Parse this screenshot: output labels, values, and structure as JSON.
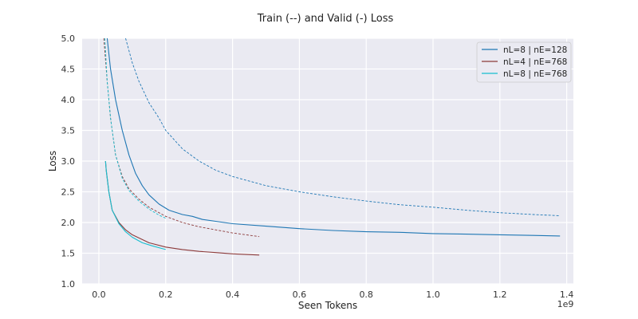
{
  "chart_data": {
    "type": "line",
    "title": "Train (--) and Valid (-) Loss",
    "xlabel": "Seen Tokens",
    "ylabel": "Loss",
    "x_offset_label": "1e9",
    "xlim": [
      -0.05,
      1.42
    ],
    "ylim": [
      1.0,
      5.0
    ],
    "x_ticks": [
      0.0,
      0.2,
      0.4,
      0.6,
      0.8,
      1.0,
      1.2,
      1.4
    ],
    "x_tick_labels": [
      "0.0",
      "0.2",
      "0.4",
      "0.6",
      "0.8",
      "1.0",
      "1.2",
      "1.4"
    ],
    "y_ticks": [
      1.0,
      1.5,
      2.0,
      2.5,
      3.0,
      3.5,
      4.0,
      4.5,
      5.0
    ],
    "y_tick_labels": [
      "1.0",
      "1.5",
      "2.0",
      "2.5",
      "3.0",
      "3.5",
      "4.0",
      "4.5",
      "5.0"
    ],
    "grid": true,
    "legend_position": "top-right",
    "legend": [
      {
        "label": "nL=8 | nE=128",
        "color": "#1f77b4"
      },
      {
        "label": "nL=4 | nE=768",
        "color": "#8c3a3a"
      },
      {
        "label": "nL=8 | nE=768",
        "color": "#17becf"
      }
    ],
    "series": [
      {
        "name": "nL=8 | nE=128",
        "split": "valid",
        "style": "solid",
        "color": "#1f77b4",
        "x": [
          0.025,
          0.035,
          0.05,
          0.07,
          0.09,
          0.11,
          0.13,
          0.15,
          0.18,
          0.21,
          0.25,
          0.28,
          0.31,
          0.35,
          0.4,
          0.5,
          0.6,
          0.7,
          0.8,
          0.9,
          1.0,
          1.1,
          1.2,
          1.3,
          1.38
        ],
        "y": [
          5.0,
          4.5,
          4.0,
          3.5,
          3.1,
          2.8,
          2.6,
          2.45,
          2.3,
          2.2,
          2.13,
          2.1,
          2.05,
          2.02,
          1.98,
          1.94,
          1.9,
          1.87,
          1.85,
          1.84,
          1.82,
          1.81,
          1.8,
          1.79,
          1.78
        ]
      },
      {
        "name": "nL=8 | nE=128",
        "split": "train",
        "style": "dashed",
        "color": "#1f77b4",
        "x": [
          0.08,
          0.1,
          0.12,
          0.15,
          0.18,
          0.2,
          0.25,
          0.3,
          0.35,
          0.4,
          0.5,
          0.6,
          0.7,
          0.8,
          0.9,
          1.0,
          1.1,
          1.2,
          1.3,
          1.38
        ],
        "y": [
          5.0,
          4.6,
          4.3,
          3.95,
          3.7,
          3.5,
          3.2,
          3.0,
          2.85,
          2.75,
          2.6,
          2.5,
          2.42,
          2.35,
          2.29,
          2.25,
          2.2,
          2.16,
          2.13,
          2.11
        ]
      },
      {
        "name": "nL=4 | nE=768",
        "split": "valid",
        "style": "solid",
        "color": "#8c3a3a",
        "x": [
          0.02,
          0.022,
          0.03,
          0.04,
          0.06,
          0.08,
          0.1,
          0.15,
          0.2,
          0.25,
          0.3,
          0.35,
          0.4,
          0.48
        ],
        "y": [
          3.0,
          2.85,
          2.5,
          2.2,
          2.0,
          1.88,
          1.8,
          1.67,
          1.6,
          1.56,
          1.53,
          1.51,
          1.49,
          1.47
        ]
      },
      {
        "name": "nL=4 | nE=768",
        "split": "train",
        "style": "dashed",
        "color": "#8c3a3a",
        "x": [
          0.015,
          0.025,
          0.035,
          0.05,
          0.07,
          0.09,
          0.12,
          0.15,
          0.2,
          0.25,
          0.3,
          0.4,
          0.48
        ],
        "y": [
          5.0,
          4.3,
          3.7,
          3.1,
          2.75,
          2.55,
          2.38,
          2.25,
          2.1,
          2.0,
          1.93,
          1.83,
          1.77
        ]
      },
      {
        "name": "nL=8 | nE=768",
        "split": "valid",
        "style": "solid",
        "color": "#17becf",
        "x": [
          0.02,
          0.022,
          0.03,
          0.04,
          0.06,
          0.08,
          0.1,
          0.13,
          0.16,
          0.2
        ],
        "y": [
          3.0,
          2.85,
          2.5,
          2.2,
          1.98,
          1.85,
          1.76,
          1.67,
          1.62,
          1.56
        ]
      },
      {
        "name": "nL=8 | nE=768",
        "split": "train",
        "style": "dashed",
        "color": "#17becf",
        "x": [
          0.018,
          0.025,
          0.035,
          0.05,
          0.07,
          0.09,
          0.12,
          0.15,
          0.18,
          0.2
        ],
        "y": [
          5.0,
          4.3,
          3.7,
          3.1,
          2.72,
          2.52,
          2.35,
          2.22,
          2.12,
          2.07
        ]
      }
    ]
  }
}
